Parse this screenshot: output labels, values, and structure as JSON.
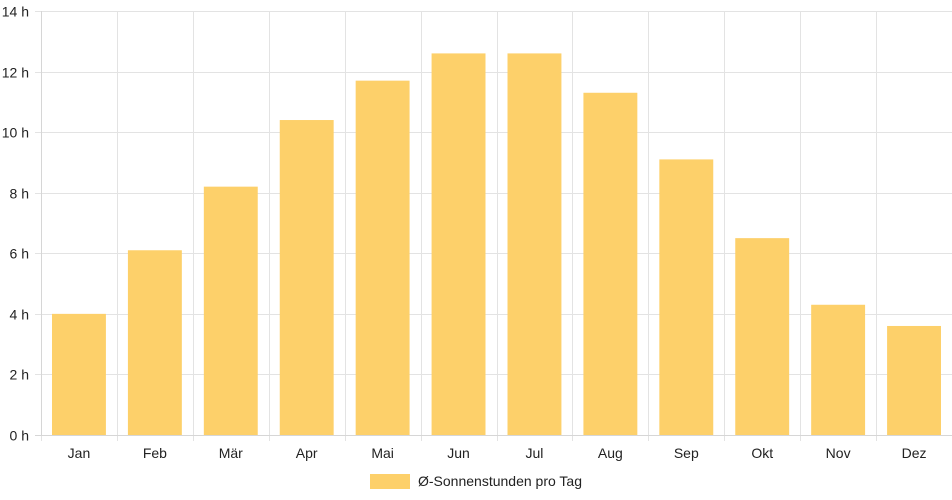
{
  "colors": {
    "bar_fill": "#fdd06a",
    "grid": "#e3e3e3",
    "text": "#222222"
  },
  "chart_data": {
    "type": "bar",
    "categories": [
      "Jan",
      "Feb",
      "Mär",
      "Apr",
      "Mai",
      "Jun",
      "Jul",
      "Aug",
      "Sep",
      "Okt",
      "Nov",
      "Dez"
    ],
    "series": [
      {
        "name": "Ø-Sonnenstunden pro Tag",
        "values": [
          4.0,
          6.1,
          8.2,
          10.4,
          11.7,
          12.6,
          12.6,
          11.3,
          9.1,
          6.5,
          4.3,
          3.6
        ]
      }
    ],
    "ylim": [
      0,
      14
    ],
    "yticks": [
      0,
      2,
      4,
      6,
      8,
      10,
      12,
      14
    ],
    "ytick_labels": [
      "0 h",
      "2 h",
      "4 h",
      "6 h",
      "8 h",
      "10 h",
      "12 h",
      "14 h"
    ],
    "grid": true,
    "legend": "bottom-center"
  }
}
